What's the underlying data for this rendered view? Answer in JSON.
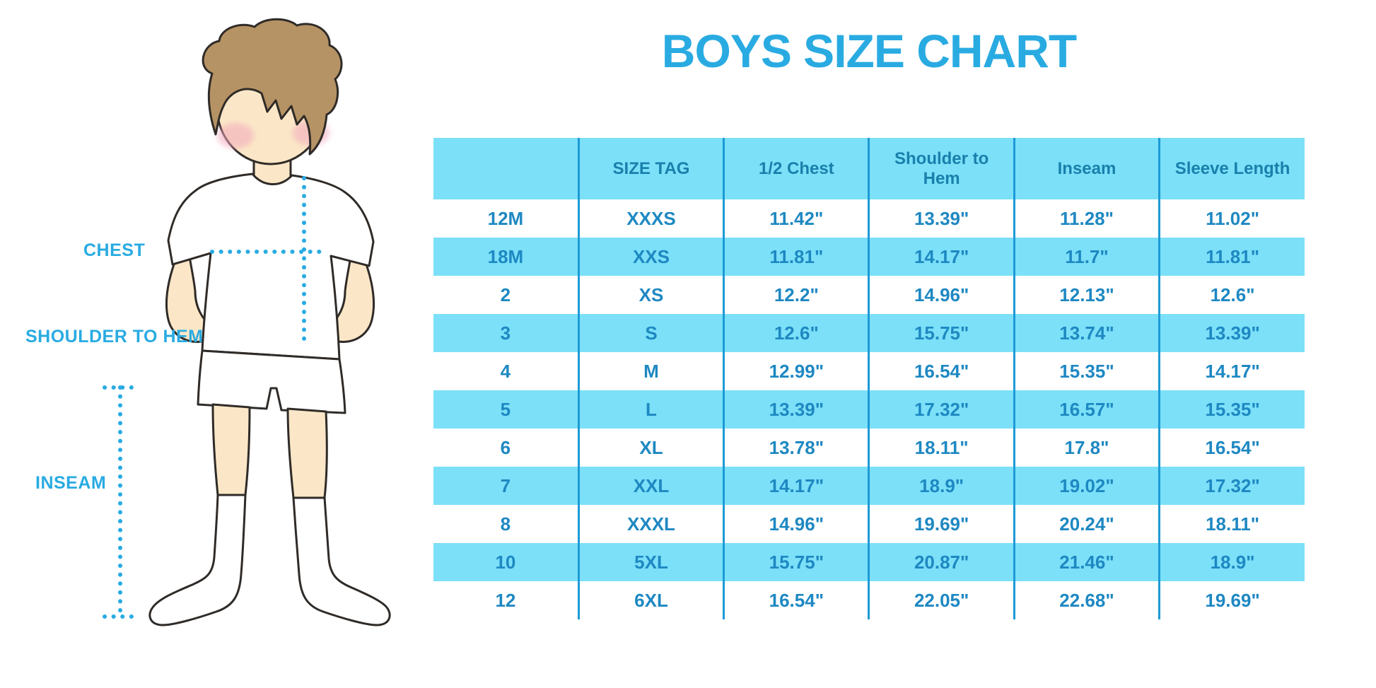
{
  "title": "BOYS SIZE CHART",
  "colors": {
    "accent_blue": "#29ABE2",
    "table_fill": "#7BE0F8",
    "table_line": "#1C9AD6",
    "table_text": "#1E88C2",
    "header_text": "#1980AC",
    "skin": "#FBE7C7",
    "hair": "#B69364",
    "blush": "#F1A7BC",
    "outline": "#2F2B28"
  },
  "figure": {
    "labels": {
      "chest": "CHEST",
      "shoulder_to_hem": "SHOULDER TO HEM",
      "inseam": "INSEAM"
    }
  },
  "chart_data": {
    "type": "table",
    "title": "BOYS SIZE CHART",
    "columns": [
      "",
      "SIZE TAG",
      "1/2 Chest",
      "Shoulder to Hem",
      "Inseam",
      "Sleeve Length"
    ],
    "rows": [
      [
        "12M",
        "XXXS",
        "11.42\"",
        "13.39\"",
        "11.28\"",
        "11.02\""
      ],
      [
        "18M",
        "XXS",
        "11.81\"",
        "14.17\"",
        "11.7\"",
        "11.81\""
      ],
      [
        "2",
        "XS",
        "12.2\"",
        "14.96\"",
        "12.13\"",
        "12.6\""
      ],
      [
        "3",
        "S",
        "12.6\"",
        "15.75\"",
        "13.74\"",
        "13.39\""
      ],
      [
        "4",
        "M",
        "12.99\"",
        "16.54\"",
        "15.35\"",
        "14.17\""
      ],
      [
        "5",
        "L",
        "13.39\"",
        "17.32\"",
        "16.57\"",
        "15.35\""
      ],
      [
        "6",
        "XL",
        "13.78\"",
        "18.11\"",
        "17.8\"",
        "16.54\""
      ],
      [
        "7",
        "XXL",
        "14.17\"",
        "18.9\"",
        "19.02\"",
        "17.32\""
      ],
      [
        "8",
        "XXXL",
        "14.96\"",
        "19.69\"",
        "20.24\"",
        "18.11\""
      ],
      [
        "10",
        "5XL",
        "15.75\"",
        "20.87\"",
        "21.46\"",
        "18.9\""
      ],
      [
        "12",
        "6XL",
        "16.54\"",
        "22.05\"",
        "22.68\"",
        "19.69\""
      ]
    ],
    "legend": false,
    "grid": "vertical-separators-only",
    "row_striping": [
      "white",
      "light-blue"
    ]
  }
}
